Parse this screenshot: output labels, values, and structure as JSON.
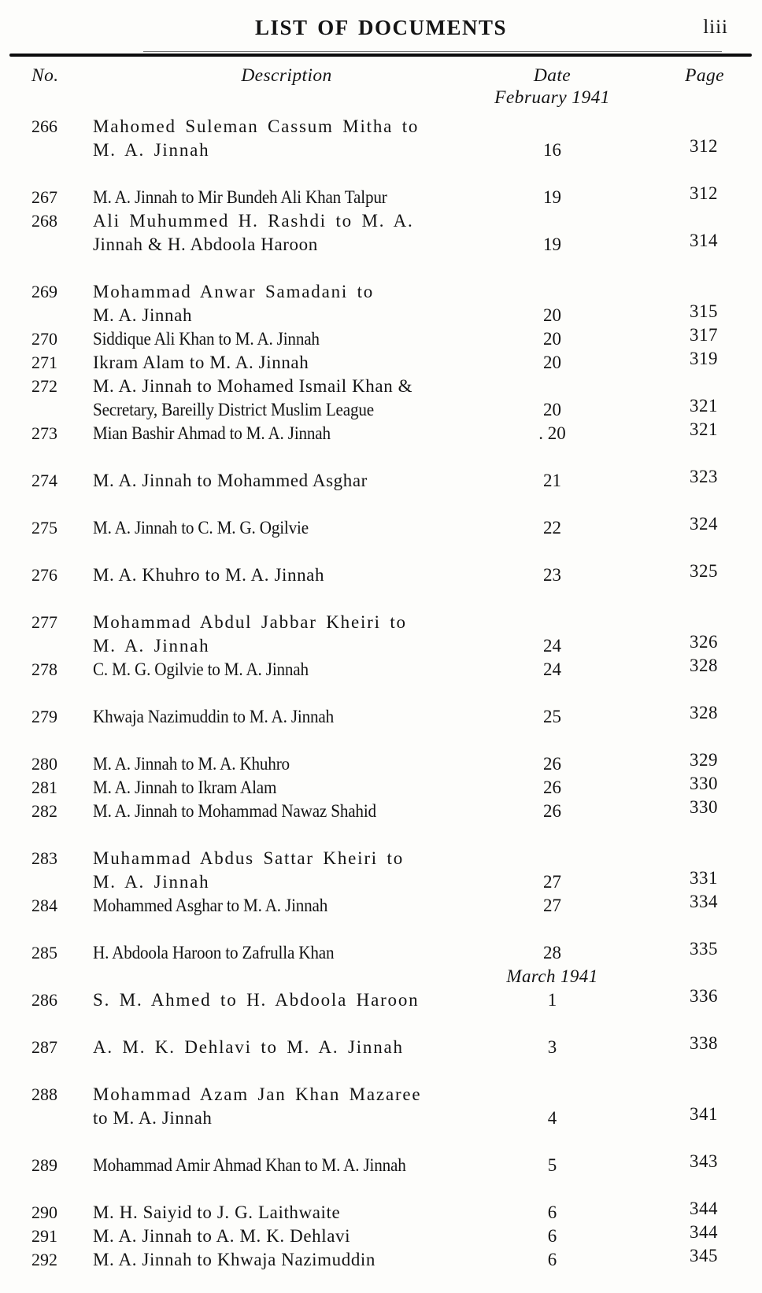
{
  "header": {
    "title": "LIST OF DOCUMENTS",
    "folio": "liii"
  },
  "table": {
    "columns": {
      "no": "No.",
      "description": "Description",
      "date": "Date",
      "page": "Page"
    },
    "date_period": "February 1941",
    "items": [
      {
        "no": "266",
        "lines": [
          {
            "t": "Mahomed Suleman Cassum Mitha to",
            "s": "w"
          },
          {
            "t": "M. A. Jinnah",
            "s": "w"
          }
        ],
        "date": "16",
        "page": "312",
        "gap": false
      },
      {
        "no": "267",
        "lines": [
          {
            "t": "M. A. Jinnah to Mir Bundeh Ali Khan Talpur",
            "s": "c"
          }
        ],
        "date": "19",
        "page": "312",
        "gap": true
      },
      {
        "no": "268",
        "lines": [
          {
            "t": "Ali Muhummed H. Rashdi to M. A.",
            "s": "w"
          },
          {
            "t": "Jinnah & H. Abdoola Haroon",
            "s": "n"
          }
        ],
        "date": "19",
        "page": "314",
        "gap": false
      },
      {
        "no": "269",
        "lines": [
          {
            "t": "Mohammad Anwar Samadani to",
            "s": "w"
          },
          {
            "t": "M. A. Jinnah",
            "s": "n"
          }
        ],
        "date": "20",
        "page": "315",
        "gap": true
      },
      {
        "no": "270",
        "lines": [
          {
            "t": "Siddique Ali Khan to M. A. Jinnah",
            "s": "c"
          }
        ],
        "date": "20",
        "page": "317",
        "gap": false
      },
      {
        "no": "271",
        "lines": [
          {
            "t": "Ikram Alam to M. A. Jinnah",
            "s": "n"
          }
        ],
        "date": "20",
        "page": "319",
        "gap": false
      },
      {
        "no": "272",
        "lines": [
          {
            "t": "M. A. Jinnah to Mohamed Ismail Khan &",
            "s": "n"
          },
          {
            "t": "Secretary, Bareilly District Muslim League",
            "s": "c"
          }
        ],
        "date": "20",
        "page": "321",
        "gap": false
      },
      {
        "no": "273",
        "lines": [
          {
            "t": "Mian Bashir Ahmad to M. A. Jinnah",
            "s": "c"
          }
        ],
        "date": ". 20",
        "page": "321",
        "gap": false
      },
      {
        "no": "274",
        "lines": [
          {
            "t": "M. A. Jinnah to Mohammed Asghar",
            "s": "n"
          }
        ],
        "date": "21",
        "page": "323",
        "gap": true
      },
      {
        "no": "275",
        "lines": [
          {
            "t": "M. A. Jinnah to C. M. G. Ogilvie",
            "s": "c"
          }
        ],
        "date": "22",
        "page": "324",
        "gap": true
      },
      {
        "no": "276",
        "lines": [
          {
            "t": "M. A. Khuhro to M. A. Jinnah",
            "s": "n"
          }
        ],
        "date": "23",
        "page": "325",
        "gap": true
      },
      {
        "no": "277",
        "lines": [
          {
            "t": "Mohammad Abdul Jabbar Kheiri to",
            "s": "w"
          },
          {
            "t": "M. A. Jinnah",
            "s": "w"
          }
        ],
        "date": "24",
        "page": "326",
        "gap": true
      },
      {
        "no": "278",
        "lines": [
          {
            "t": "C. M. G. Ogilvie to M. A. Jinnah",
            "s": "c"
          }
        ],
        "date": "24",
        "page": "328",
        "gap": false
      },
      {
        "no": "279",
        "lines": [
          {
            "t": "Khwaja Nazimuddin to M. A. Jinnah",
            "s": "c"
          }
        ],
        "date": "25",
        "page": "328",
        "gap": true
      },
      {
        "no": "280",
        "lines": [
          {
            "t": "M. A. Jinnah to M. A. Khuhro",
            "s": "c"
          }
        ],
        "date": "26",
        "page": "329",
        "gap": true
      },
      {
        "no": "281",
        "lines": [
          {
            "t": "M. A. Jinnah to Ikram Alam",
            "s": "c"
          }
        ],
        "date": "26",
        "page": "330",
        "gap": false
      },
      {
        "no": "282",
        "lines": [
          {
            "t": "M. A. Jinnah to Mohammad Nawaz Shahid",
            "s": "c"
          }
        ],
        "date": "26",
        "page": "330",
        "gap": false
      },
      {
        "no": "283",
        "lines": [
          {
            "t": "Muhammad Abdus Sattar Kheiri to",
            "s": "w"
          },
          {
            "t": "M. A. Jinnah",
            "s": "w"
          }
        ],
        "date": "27",
        "page": "331",
        "gap": true
      },
      {
        "no": "284",
        "lines": [
          {
            "t": "Mohammed Asghar to M. A. Jinnah",
            "s": "c"
          }
        ],
        "date": "27",
        "page": "334",
        "gap": false
      },
      {
        "no": "285",
        "lines": [
          {
            "t": "H. Abdoola Haroon to Zafrulla Khan",
            "s": "c"
          }
        ],
        "date": "28",
        "page": "335",
        "gap": true
      },
      {
        "type": "divider",
        "text": "March 1941"
      },
      {
        "no": "286",
        "lines": [
          {
            "t": "S. M. Ahmed to H. Abdoola Haroon",
            "s": "w"
          }
        ],
        "date": "1",
        "page": "336",
        "gap": false
      },
      {
        "no": "287",
        "lines": [
          {
            "t": "A. M. K. Dehlavi to M. A. Jinnah",
            "s": "w"
          }
        ],
        "date": "3",
        "page": "338",
        "gap": true
      },
      {
        "no": "288",
        "lines": [
          {
            "t": "Mohammad Azam Jan Khan Mazaree",
            "s": "w"
          },
          {
            "t": "to M. A. Jinnah",
            "s": "n"
          }
        ],
        "date": "4",
        "page": "341",
        "gap": true
      },
      {
        "no": "289",
        "lines": [
          {
            "t": "Mohammad Amir Ahmad Khan to M. A. Jinnah",
            "s": "c"
          }
        ],
        "date": "5",
        "page": "343",
        "gap": true
      },
      {
        "no": "290",
        "lines": [
          {
            "t": "M. H. Saiyid to J. G. Laithwaite",
            "s": "n"
          }
        ],
        "date": "6",
        "page": "344",
        "gap": true
      },
      {
        "no": "291",
        "lines": [
          {
            "t": "M. A. Jinnah to A. M. K. Dehlavi",
            "s": "n"
          }
        ],
        "date": "6",
        "page": "344",
        "gap": false
      },
      {
        "no": "292",
        "lines": [
          {
            "t": "M. A. Jinnah to Khwaja Nazimuddin",
            "s": "n"
          }
        ],
        "date": "6",
        "page": "345",
        "gap": false
      }
    ]
  }
}
